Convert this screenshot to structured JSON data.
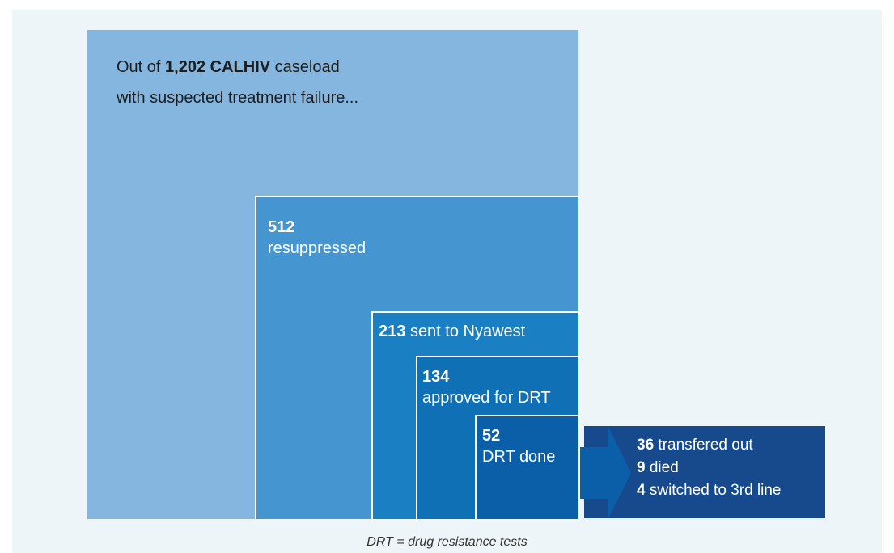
{
  "intro": {
    "prefix": "Out of",
    "highlight": "1,202 CALHIV",
    "suffix": "caseload",
    "line2": "with suspected treatment failure..."
  },
  "boxes": [
    {
      "number": 512,
      "label": "resuppressed"
    },
    {
      "number": 213,
      "label": "sent to Nyawest"
    },
    {
      "number": 134,
      "label": "approved for DRT"
    },
    {
      "number": 52,
      "label": "DRT done"
    }
  ],
  "outcomes": [
    {
      "number": 36,
      "label": "transfered out"
    },
    {
      "number": 9,
      "label": "died"
    },
    {
      "number": 4,
      "label": "switched to 3rd line"
    }
  ],
  "footnote": "DRT = drug resistance tests"
}
